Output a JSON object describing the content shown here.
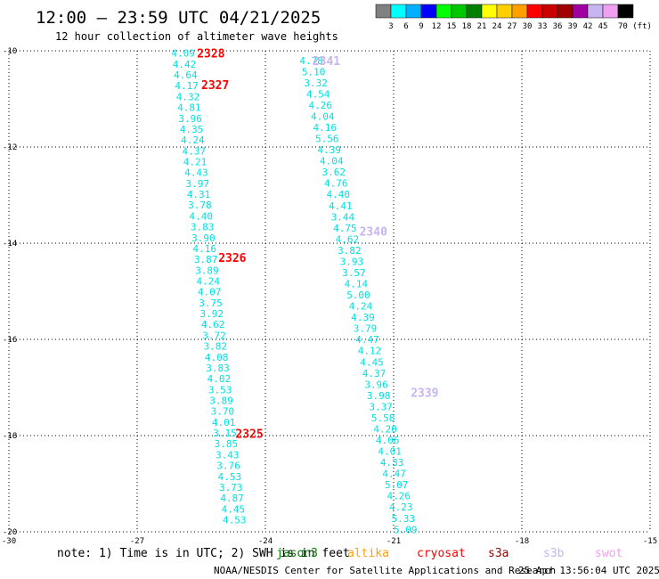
{
  "header": {
    "title": "12:00 – 23:59 UTC 04/21/2025",
    "subtitle": "12 hour collection of altimeter wave heights"
  },
  "colorbar": {
    "colors": [
      "#808080",
      "#00ffff",
      "#00b0ff",
      "#0000ff",
      "#00ff00",
      "#00c800",
      "#008000",
      "#ffff00",
      "#ffd000",
      "#ffa000",
      "#ff0000",
      "#c80000",
      "#a00000",
      "#a000a0",
      "#c8b4f0",
      "#f0a0f0",
      "#000000"
    ],
    "labels": [
      "3",
      "6",
      "9",
      "12",
      "15",
      "18",
      "21",
      "24",
      "27",
      "30",
      "33",
      "36",
      "39",
      "42",
      "45",
      "70 (ft)"
    ]
  },
  "chart_data": {
    "type": "scatter",
    "title": "12:00 – 23:59 UTC 04/21/2025",
    "subtitle": "12 hour collection of altimeter wave heights",
    "xlim": [
      -30,
      -15
    ],
    "ylim": [
      -20,
      -10
    ],
    "xticks": [
      -30,
      -27,
      -24,
      -21,
      -18,
      -15
    ],
    "yticks": [
      -10,
      -12,
      -14,
      -16,
      -18,
      -20
    ],
    "grid": true,
    "tracks": [
      {
        "values": [
          "4.09",
          "4.42",
          "4.64",
          "4.17",
          "4.32",
          "4.81",
          "3.96",
          "4.35",
          "4.24",
          "4.37",
          "4.21",
          "4.43",
          "3.97",
          "4.31",
          "3.78",
          "4.40",
          "3.83",
          "3.90",
          "4.16",
          "3.87",
          "3.89",
          "4.24",
          "4.07",
          "3.75",
          "3.92",
          "4.62",
          "3.72",
          "3.82",
          "4.08",
          "3.83",
          "4.02",
          "3.53",
          "3.89",
          "3.70",
          "4.01",
          "3.15",
          "3.85",
          "3.43",
          "3.76",
          "4.53",
          "3.73",
          "4.87",
          "4.45",
          "4.53"
        ],
        "start": [
          -26.2,
          -10.05
        ],
        "end": [
          -25.0,
          -19.75
        ]
      },
      {
        "values": [
          "4.78",
          "5.10",
          "3.32",
          "4.54",
          "4.26",
          "4.04",
          "4.16",
          "5.56",
          "4.39",
          "4.04",
          "3.62",
          "4.76",
          "4.40",
          "4.41",
          "3.44",
          "4.75",
          "4.62",
          "3.82",
          "3.93",
          "3.57",
          "4.14",
          "5.00",
          "4.24",
          "4.39",
          "3.79",
          "4.47",
          "4.12",
          "4.45",
          "4.37",
          "3.96",
          "3.98",
          "3.37",
          "5.58",
          "4.20",
          "4.06",
          "4.01",
          "4.33",
          "4.47",
          "5.07",
          "4.26",
          "4.23",
          "5.33",
          "5.09"
        ],
        "start": [
          -23.2,
          -10.2
        ],
        "end": [
          -21.0,
          -19.95
        ]
      }
    ],
    "pass_labels": [
      {
        "label": "2328",
        "x": -25.6,
        "y": -10.05,
        "color": "#ff0000"
      },
      {
        "label": "2327",
        "x": -25.5,
        "y": -10.7,
        "color": "#ff0000"
      },
      {
        "label": "2326",
        "x": -25.1,
        "y": -14.3,
        "color": "#ff0000"
      },
      {
        "label": "2325",
        "x": -24.7,
        "y": -17.95,
        "color": "#ff0000"
      },
      {
        "label": "2341",
        "x": -22.9,
        "y": -10.2,
        "color": "#c8b4f0"
      },
      {
        "label": "2340",
        "x": -21.8,
        "y": -13.75,
        "color": "#c8b4f0"
      },
      {
        "label": "2339",
        "x": -20.6,
        "y": -17.1,
        "color": "#c8b4f0"
      }
    ]
  },
  "note": "note: 1) Time is in UTC; 2) SWH is in feet",
  "legend": [
    {
      "label": "jason3",
      "color": "#008000"
    },
    {
      "label": "altika",
      "color": "#ffa000"
    },
    {
      "label": "cryosat",
      "color": "#ff0000"
    },
    {
      "label": "s3a",
      "color": "#a00000"
    },
    {
      "label": "s3b",
      "color": "#c8b4f0"
    },
    {
      "label": "swot",
      "color": "#f0a0f0"
    }
  ],
  "footer": {
    "credit": "NOAA/NESDIS Center for Satellite Applications and Research",
    "timestamp": "25 Apr 13:56:04 UTC 2025"
  }
}
